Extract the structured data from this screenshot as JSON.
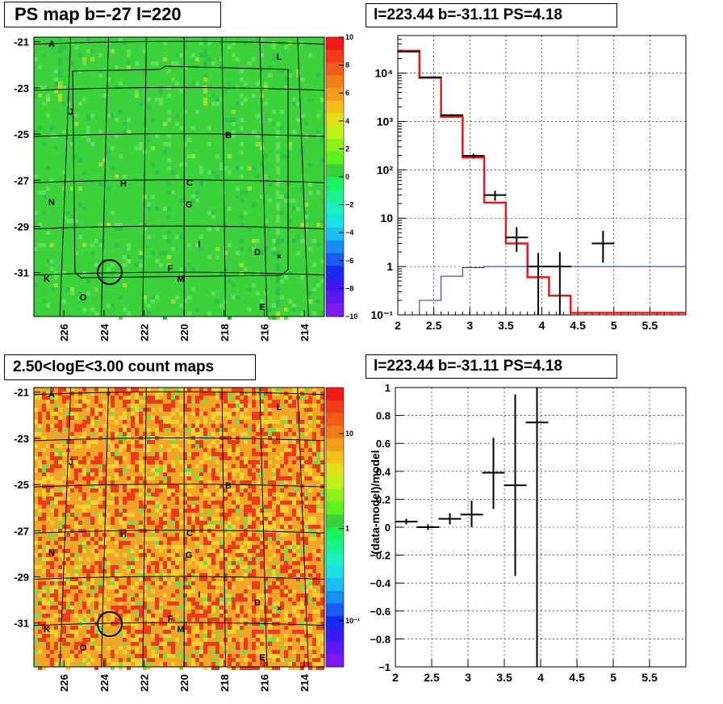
{
  "panels": {
    "tl": {
      "title": "PS map b=-27 l=220"
    },
    "tr": {
      "title": "l=223.44 b=-31.11 PS=4.18"
    },
    "bl": {
      "title": "2.50<logE<3.00 count maps"
    },
    "br": {
      "title": "l=223.44 b=-31.11 PS=4.18"
    }
  },
  "colors": {
    "data": "#000000",
    "model": "#e41a1c",
    "component": "#1f2fa8",
    "map_green": "#3cd23c",
    "map_orange": "#f5a020"
  },
  "maps": {
    "y_ticks": [
      "-21",
      "-23",
      "-25",
      "-27",
      "-29",
      "-31"
    ],
    "x_ticks": [
      "226",
      "224",
      "222",
      "220",
      "218",
      "216",
      "214"
    ],
    "source_labels": [
      "A",
      "L",
      "J",
      "B",
      "H",
      "C",
      "N",
      "G",
      "I",
      "D",
      "K",
      "F",
      "M",
      "O",
      "E"
    ],
    "marker_glyph": "×",
    "ps_colorbar_ticks": [
      "10",
      "8",
      "6",
      "4",
      "2",
      "0",
      "−2",
      "−4",
      "−6",
      "−8",
      "−10"
    ],
    "count_colorbar_ticks": [
      "10",
      "1",
      "10⁻¹"
    ],
    "ps_map": {
      "l_center": 220,
      "b_center": -27,
      "l_range": [
        227.5,
        213
      ],
      "b_range": [
        -32.9,
        -20.8
      ],
      "z_range": [
        -10,
        10
      ],
      "color_scale": "rainbow"
    },
    "count_map": {
      "log_e_range": [
        2.5,
        3.0
      ],
      "z_scale": "log",
      "color_scale": "rainbow"
    },
    "circle_at": {
      "l": 223.44,
      "b": -31.11
    }
  },
  "chart_data": [
    {
      "type": "histogram",
      "panel": "top-right",
      "x_ticks": [
        "2",
        "2.5",
        "3",
        "3.5",
        "4",
        "4.5",
        "5",
        "5.5"
      ],
      "y_ticks": [
        "10⁻¹",
        "1",
        "10",
        "10²",
        "10³",
        "10⁴"
      ],
      "xlim": [
        2,
        6
      ],
      "ylim": [
        0.1,
        60000
      ],
      "yscale": "log",
      "grid": true,
      "series": [
        {
          "style": "errorbar",
          "x": [
            2.15,
            2.45,
            2.75,
            3.05,
            3.35,
            3.65,
            3.95,
            4.25,
            4.85
          ],
          "y": [
            28000,
            8200,
            1350,
            195,
            30,
            4,
            1,
            1,
            3
          ],
          "ylo": [
            27000,
            8000,
            1280,
            175,
            23,
            2,
            0.1,
            0.1,
            1.2
          ],
          "yhi": [
            29000,
            8400,
            1420,
            215,
            37,
            6.5,
            1.9,
            2,
            5.5
          ]
        },
        {
          "style": "step",
          "edges": [
            2.0,
            2.3,
            2.6,
            2.9,
            3.2,
            3.5,
            3.8,
            4.1,
            4.4,
            6.0
          ],
          "values": [
            29000,
            8000,
            1250,
            180,
            21,
            3,
            0.6,
            0.25,
            0.11
          ]
        },
        {
          "style": "step",
          "edges": [
            2.3,
            2.6,
            2.9,
            3.2,
            3.5,
            3.8,
            6.0
          ],
          "values": [
            0.2,
            0.63,
            0.95,
            1.0,
            1.0,
            1.0
          ]
        }
      ]
    },
    {
      "type": "scatter",
      "panel": "bottom-right",
      "ylabel": "(data-model)/model",
      "x_ticks": [
        "2",
        "2.5",
        "3",
        "3.5",
        "4",
        "4.5",
        "5",
        "5.5"
      ],
      "y_ticks": [
        "1",
        "0.8",
        "0.6",
        "0.4",
        "0.2",
        "0",
        "−0.2",
        "−0.4",
        "−0.6",
        "−0.8",
        "−1"
      ],
      "xlim": [
        2,
        6
      ],
      "ylim": [
        -1,
        1
      ],
      "grid": true,
      "points": [
        {
          "x": 2.15,
          "y": 0.04,
          "ylo": 0.02,
          "yhi": 0.06
        },
        {
          "x": 2.45,
          "y": 0.0,
          "ylo": -0.02,
          "yhi": 0.02
        },
        {
          "x": 2.75,
          "y": 0.06,
          "ylo": 0.02,
          "yhi": 0.1
        },
        {
          "x": 3.05,
          "y": 0.09,
          "ylo": 0.0,
          "yhi": 0.19
        },
        {
          "x": 3.35,
          "y": 0.39,
          "ylo": 0.13,
          "yhi": 0.64
        },
        {
          "x": 3.65,
          "y": 0.3,
          "ylo": -0.35,
          "yhi": 0.95
        },
        {
          "x": 3.95,
          "y": 0.75,
          "ylo": -1.0,
          "yhi": 1.0
        }
      ]
    }
  ]
}
